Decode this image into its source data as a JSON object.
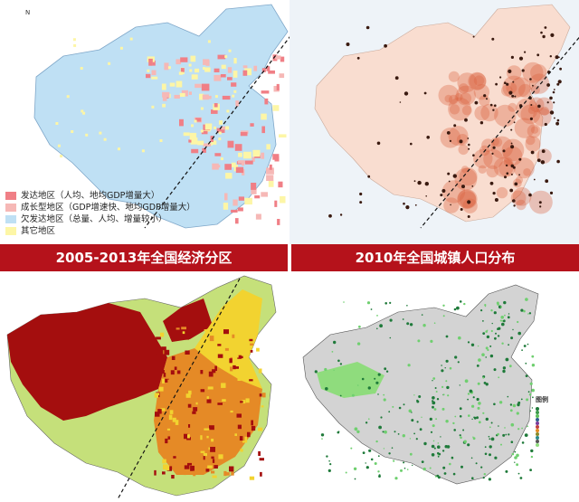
{
  "panels": {
    "top_left": {
      "banner": "2005-2013年全国经济分区",
      "compass_letter": "N",
      "legend": [
        {
          "label": "发达地区（人均、地均GDP增量大）",
          "color": "#f07f86"
        },
        {
          "label": "成长型地区（GDP增速快、地均GDP增量大）",
          "color": "#f6b8b6"
        },
        {
          "label": "欠发达地区（总量、人均、增量较小）",
          "color": "#bfe0f4"
        },
        {
          "label": "其它地区",
          "color": "#fdf6a6"
        }
      ],
      "colors": {
        "base": "#bfe0f4",
        "developed": "#f07f86",
        "growth": "#f6b8b6",
        "other": "#fdf6a6"
      }
    },
    "top_right": {
      "banner": "2010年全国城镇人口分布",
      "colors": {
        "base": "#f9ddd0",
        "ocean": "#d9e6f1",
        "dense": "#d9603e",
        "dot": "#3a1a10"
      }
    },
    "bottom_left": {
      "colors": {
        "red": "#a40e0e",
        "yellow": "#f2d330",
        "orange": "#e58a26",
        "green": "#c5e07a"
      }
    },
    "bottom_right": {
      "legend_title": "图例",
      "legend_items": [
        "",
        "",
        "",
        "",
        "",
        "",
        "",
        "",
        "",
        "",
        ""
      ],
      "colors": {
        "base": "#d3d3d3",
        "green": "#6fcf6f",
        "dot": "#1f7a3a",
        "ocean": "#ffffff"
      }
    }
  },
  "divider_line": "dashed black diagonal line from Heihe to Tengchong"
}
